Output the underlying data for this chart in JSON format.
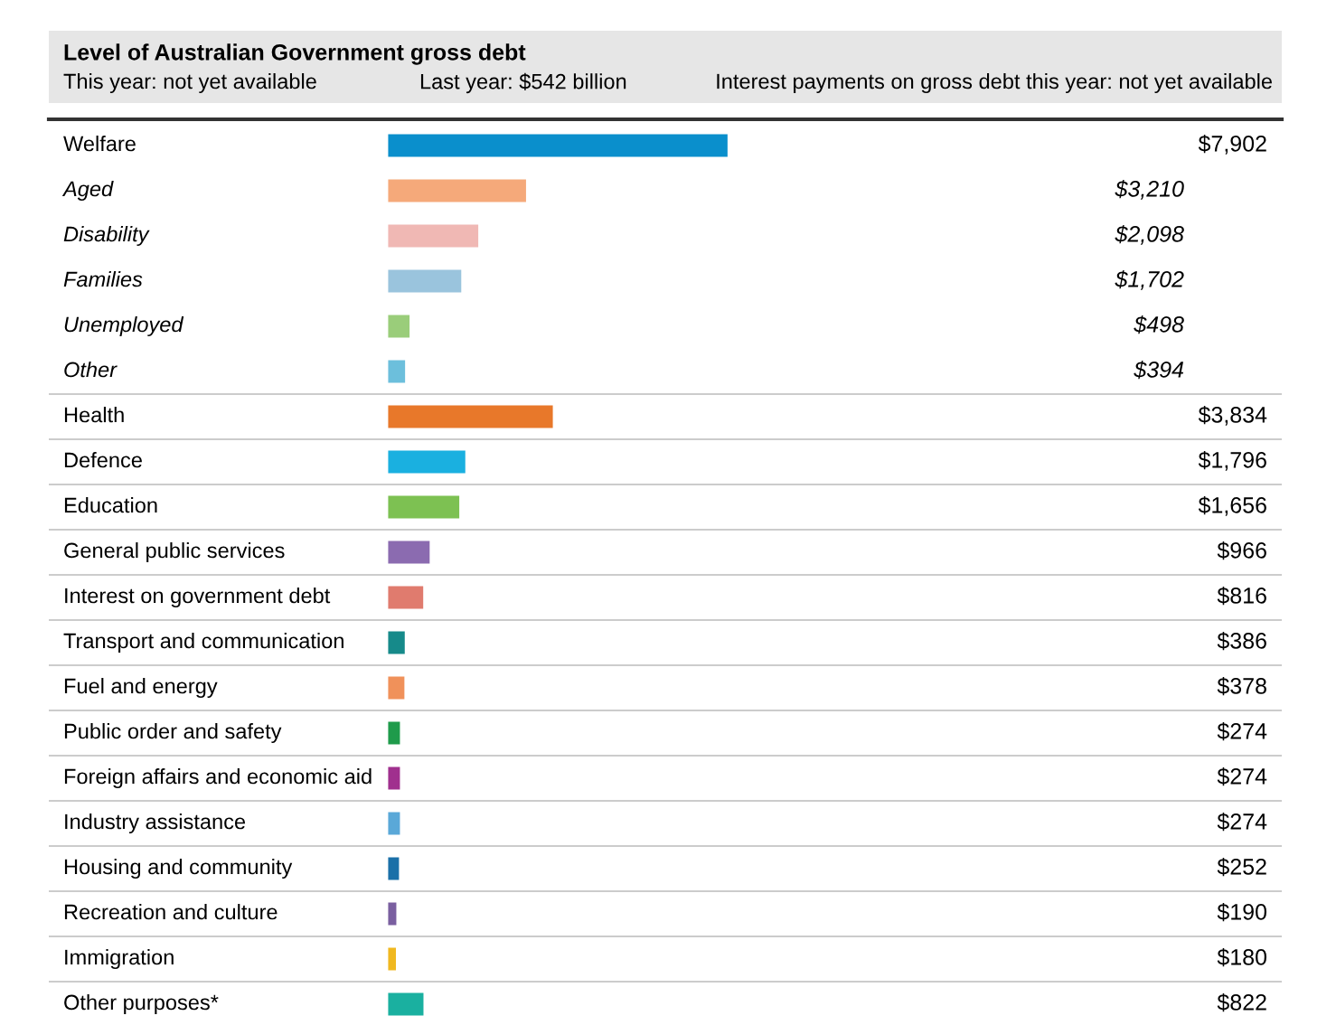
{
  "chart_data": {
    "type": "bar",
    "orientation": "horizontal",
    "title": "Level of Australian Government gross debt",
    "annotations": [
      "This year: not yet available",
      "Last year: $542 billion",
      "Interest payments on gross debt this year: not yet available"
    ],
    "categories": [
      "Welfare",
      "Aged",
      "Disability",
      "Families",
      "Unemployed",
      "Other",
      "Health",
      "Defence",
      "Education",
      "General public services",
      "Interest on government debt",
      "Transport and communication",
      "Fuel and energy",
      "Public order and safety",
      "Foreign affairs and economic aid",
      "Industry assistance",
      "Housing and community",
      "Recreation and culture",
      "Immigration",
      "Other purposes*"
    ],
    "series": [
      {
        "values": [
          7902,
          null,
          null,
          null,
          null,
          null,
          3834,
          1796,
          1656,
          966,
          816,
          386,
          378,
          274,
          274,
          274,
          252,
          190,
          180,
          822
        ],
        "colors": [
          "#0a8fcc",
          null,
          null,
          null,
          null,
          null,
          "#e8782a",
          "#1ab0e0",
          "#7dc152",
          "#8b6bb0",
          "#e07b6e",
          "#168a8a",
          "#f0915a",
          "#1f9b4b",
          "#a0308e",
          "#5aa8d8",
          "#1a70a8",
          "#7a5fa0",
          "#f0b820",
          "#1ab0a0"
        ],
        "value_labels": [
          "$7,902",
          null,
          null,
          null,
          null,
          null,
          "$3,834",
          "$1,796",
          "$1,656",
          "$966",
          "$816",
          "$386",
          "$378",
          "$274",
          "$274",
          "$274",
          "$252",
          "$190",
          "$180",
          "$822"
        ]
      },
      {
        "values": [
          null,
          3210,
          2098,
          1702,
          498,
          394,
          null,
          null,
          null,
          null,
          null,
          null,
          null,
          null,
          null,
          null,
          null,
          null,
          null,
          null
        ],
        "colors": [
          null,
          "#f5a97a",
          "#f0b8b4",
          "#9ac4dd",
          "#9acd7a",
          "#6cbfdc",
          null,
          null,
          null,
          null,
          null,
          null,
          null,
          null,
          null,
          null,
          null,
          null,
          null,
          null
        ],
        "value_labels": [
          null,
          "$3,210",
          "$2,098",
          "$1,702",
          "$498",
          "$394",
          null,
          null,
          null,
          null,
          null,
          null,
          null,
          null,
          null,
          null,
          null,
          null,
          null,
          null
        ]
      }
    ]
  }
}
